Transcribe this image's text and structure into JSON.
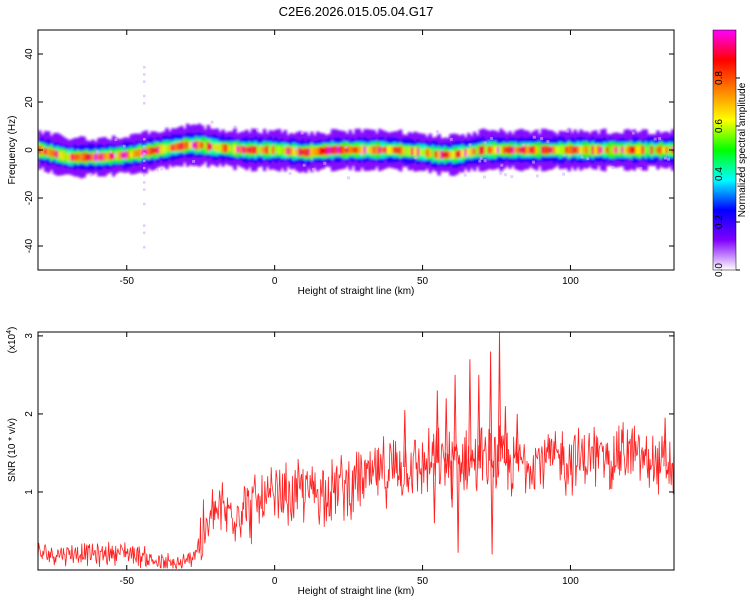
{
  "title": "C2E6.2026.015.05.04.G17",
  "chart_data": [
    {
      "type": "heatmap",
      "xlabel": "Height of straight line (km)",
      "ylabel": "Frequency (Hz)",
      "xlim": [
        -80,
        135
      ],
      "ylim": [
        -50,
        50
      ],
      "xticks": [
        -50,
        0,
        50,
        100
      ],
      "yticks": [
        -40,
        -20,
        0,
        20,
        40
      ],
      "grid": false,
      "ridge": {
        "x": [
          -80,
          -70,
          -60,
          -50,
          -45,
          -40,
          -35,
          -30,
          -25,
          -20,
          -10,
          0,
          10,
          20,
          30,
          40,
          50,
          55,
          60,
          65,
          70,
          80,
          90,
          100,
          110,
          120,
          135
        ],
        "freq": [
          0,
          -3,
          -3,
          -2,
          -1,
          0,
          1,
          2,
          2,
          1,
          0,
          0,
          -1,
          0,
          0,
          0,
          -1,
          -2,
          -2,
          -1,
          0,
          0,
          0,
          0,
          0,
          0,
          0
        ]
      },
      "colorbar": {
        "label": "Normalized spectral amplitude",
        "range": [
          0,
          1
        ],
        "ticks": [
          "0.0",
          "0.2",
          "0.4",
          "0.6",
          "0.8"
        ],
        "colors": [
          "#ffffff",
          "#8000ff",
          "#0000ff",
          "#00ffff",
          "#00ff00",
          "#ffff00",
          "#ff8000",
          "#ff0000",
          "#ff00ff"
        ]
      }
    },
    {
      "type": "line",
      "xlabel": "Height of straight line (km)",
      "ylabel": "SNR (10 * v/v)",
      "exponent_label": "(x10",
      "exponent_power": "4",
      "exponent_close": ")",
      "xlim": [
        -80,
        135
      ],
      "ylim": [
        0,
        3.05
      ],
      "xticks": [
        -50,
        0,
        50,
        100
      ],
      "yticks": [
        1,
        2,
        3
      ],
      "color": "#ff2020",
      "x": [
        -80,
        -70,
        -60,
        -50,
        -45,
        -40,
        -35,
        -30,
        -25,
        -20,
        -15,
        -10,
        0,
        10,
        20,
        30,
        40,
        50,
        60,
        70,
        75,
        80,
        90,
        100,
        110,
        120,
        130,
        135
      ],
      "y": [
        0.2,
        0.22,
        0.2,
        0.24,
        0.18,
        0.1,
        0.06,
        0.08,
        0.35,
        0.75,
        0.75,
        0.8,
        0.9,
        1.0,
        1.05,
        1.15,
        1.3,
        1.35,
        1.4,
        1.4,
        1.4,
        1.35,
        1.45,
        1.4,
        1.45,
        1.5,
        1.35,
        1.3
      ],
      "spikes": [
        {
          "x": 44,
          "y": 2.05
        },
        {
          "x": 55,
          "y": 2.3
        },
        {
          "x": 58,
          "y": 2.2
        },
        {
          "x": 61,
          "y": 2.5
        },
        {
          "x": 62,
          "y": 0.22
        },
        {
          "x": 66,
          "y": 2.7
        },
        {
          "x": 69,
          "y": 2.5
        },
        {
          "x": 73,
          "y": 2.8
        },
        {
          "x": 73.5,
          "y": 0.2
        },
        {
          "x": 76,
          "y": 3.05
        },
        {
          "x": 78,
          "y": 2.1
        },
        {
          "x": 82,
          "y": 2.0
        },
        {
          "x": 54,
          "y": 0.6
        },
        {
          "x": 60,
          "y": 0.8
        },
        {
          "x": 132,
          "y": 1.95
        }
      ]
    }
  ]
}
